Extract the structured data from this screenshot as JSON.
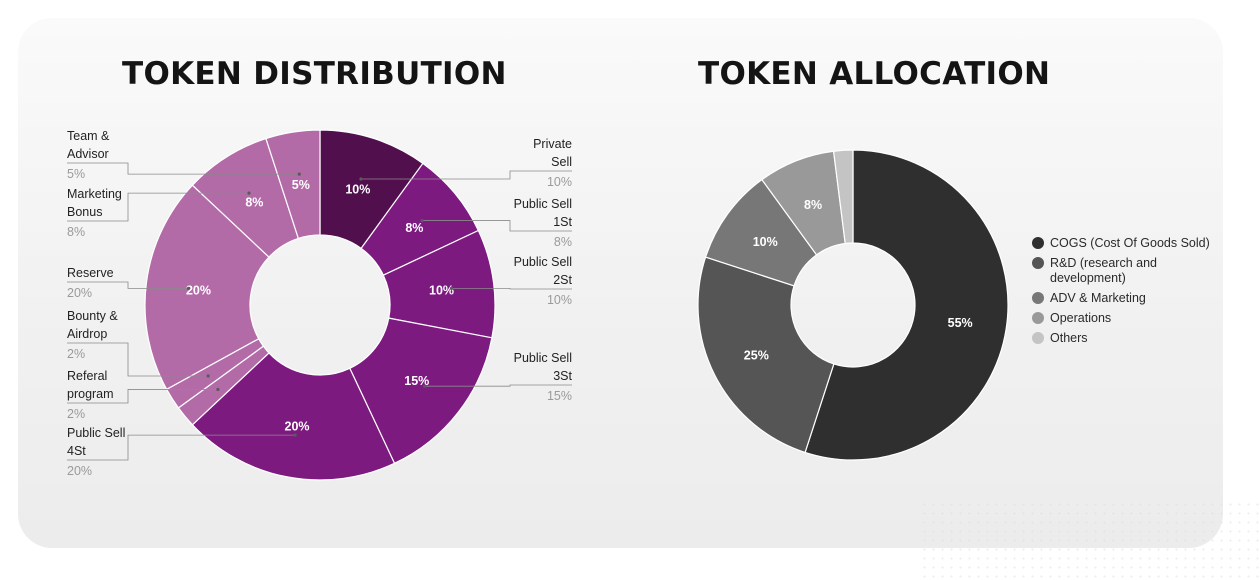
{
  "chart_data": [
    {
      "type": "pie",
      "donut": true,
      "title": "TOKEN DISTRIBUTION",
      "legend": "callouts around chart",
      "categories": [
        "Private Sell",
        "Public Sell 1St",
        "Public Sell 2St",
        "Public Sell 3St",
        "Public Sell 4St",
        "Referal program",
        "Bounty & Airdrop",
        "Reserve",
        "Marketing Bonus",
        "Team & Advisor"
      ],
      "values": [
        10,
        8,
        10,
        15,
        20,
        2,
        2,
        20,
        8,
        5
      ],
      "colors": [
        "#520f4e",
        "#7c1a80",
        "#7c1a80",
        "#7c1a80",
        "#7c1a80",
        "#b36ba8",
        "#b36ba8",
        "#b36ba8",
        "#b36ba8",
        "#b36ba8"
      ],
      "slice_labels": [
        "10%",
        "8%",
        "10%",
        "15%",
        "20%",
        "",
        "",
        "20%",
        "8%",
        "5%"
      ],
      "callouts": [
        {
          "lines": [
            "Private",
            "Sell"
          ],
          "pct": "10%",
          "side": "right"
        },
        {
          "lines": [
            "Public Sell",
            "1St"
          ],
          "pct": "8%",
          "side": "right"
        },
        {
          "lines": [
            "Public Sell",
            "2St"
          ],
          "pct": "10%",
          "side": "right"
        },
        {
          "lines": [
            "Public Sell",
            "3St"
          ],
          "pct": "15%",
          "side": "right"
        },
        {
          "lines": [
            "Public Sell",
            "4St"
          ],
          "pct": "20%",
          "side": "left"
        },
        {
          "lines": [
            "Referal",
            "program"
          ],
          "pct": "2%",
          "side": "left"
        },
        {
          "lines": [
            "Bounty &",
            "Airdrop"
          ],
          "pct": "2%",
          "side": "left"
        },
        {
          "lines": [
            "Reserve"
          ],
          "pct": "20%",
          "side": "left"
        },
        {
          "lines": [
            "Marketing",
            "Bonus"
          ],
          "pct": "8%",
          "side": "left"
        },
        {
          "lines": [
            "Team &",
            "Advisor"
          ],
          "pct": "5%",
          "side": "left"
        }
      ]
    },
    {
      "type": "pie",
      "donut": true,
      "title": "TOKEN ALLOCATION",
      "legend": "right",
      "categories": [
        "COGS (Cost Of Goods Sold)",
        "R&D (research and development)",
        "ADV & Marketing",
        "Operations",
        "Others"
      ],
      "values": [
        55,
        25,
        10,
        8,
        2
      ],
      "colors": [
        "#2f2f2f",
        "#555555",
        "#777777",
        "#999999",
        "#c4c4c4"
      ],
      "slice_labels": [
        "55%",
        "25%",
        "10%",
        "8%",
        ""
      ]
    }
  ]
}
